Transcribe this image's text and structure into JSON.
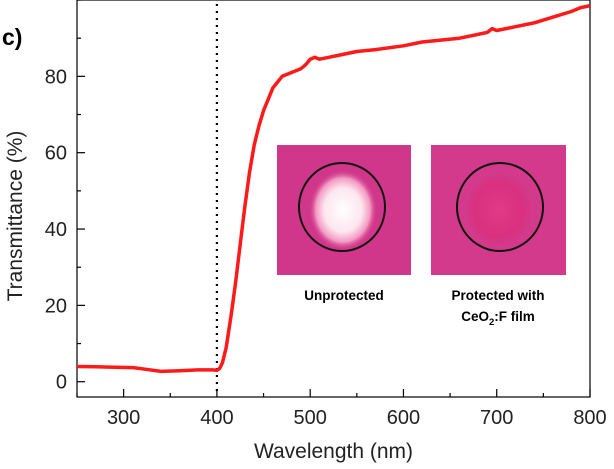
{
  "panel_label": "c)",
  "chart_data": {
    "type": "line",
    "title": "",
    "xlabel": "Wavelength (nm)",
    "ylabel": "Transmittance (%)",
    "xlim": [
      250,
      800
    ],
    "ylim": [
      -4,
      100
    ],
    "xticks": [
      300,
      400,
      500,
      600,
      700,
      800
    ],
    "yticks": [
      0,
      20,
      40,
      60,
      80
    ],
    "grid": false,
    "series": [
      {
        "name": "Transmittance",
        "color": "#ff1a1a",
        "x": [
          250,
          270,
          290,
          310,
          320,
          340,
          360,
          380,
          395,
          400,
          403,
          406,
          410,
          415,
          420,
          425,
          430,
          435,
          440,
          445,
          450,
          455,
          460,
          465,
          470,
          475,
          480,
          490,
          495,
          500,
          505,
          510,
          520,
          530,
          550,
          570,
          600,
          620,
          640,
          660,
          670,
          690,
          695,
          700,
          710,
          720,
          740,
          760,
          780,
          790,
          800
        ],
        "y": [
          4,
          3.9,
          3.8,
          3.7,
          3.4,
          2.7,
          2.9,
          3.1,
          3.1,
          3.0,
          3.5,
          5,
          9,
          17,
          26,
          36,
          46,
          55,
          62,
          67,
          71,
          74,
          77,
          78.5,
          80,
          80.5,
          81,
          82,
          83,
          84.5,
          85,
          84.5,
          85,
          85.5,
          86.5,
          87,
          88,
          89,
          89.5,
          90,
          90.5,
          91.5,
          92.5,
          92,
          92.5,
          93,
          94,
          95.5,
          97,
          98,
          98.5
        ]
      }
    ],
    "reference_line": {
      "x": 400,
      "style": "dotted",
      "color": "#000000"
    }
  },
  "insets": [
    {
      "caption_lines": [
        "Unprotected"
      ],
      "spot": "bleached"
    },
    {
      "caption_line1": "Protected with",
      "caption_line2_prefix": "CeO",
      "caption_line2_sub": "2",
      "caption_line2_suffix": ":F film",
      "spot": "faint"
    }
  ]
}
